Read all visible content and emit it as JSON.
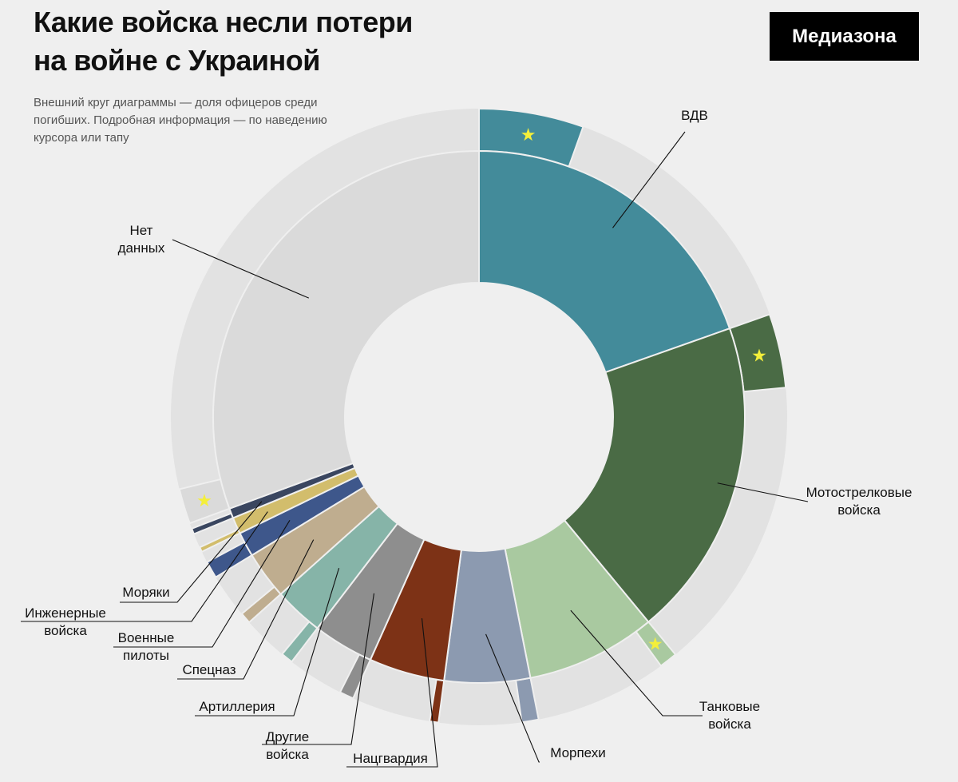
{
  "header": {
    "title_lines": [
      "Какие войска несли потери",
      "на войне с Украиной"
    ],
    "subtitle": "Внешний круг диаграммы — доля офицеров среди погибших. Подробная информация — по наведению курсора или тапу",
    "logo": "Медиазона"
  },
  "chart_data": {
    "type": "pie",
    "variant": "nested-donut",
    "inner_ring": "доля погибших по родам войск (%)",
    "outer_ring": "доля офицеров среди погибших (%)",
    "segments": [
      {
        "label": "ВДВ",
        "value": 19.6,
        "officer_share": 28,
        "color": "#438b9a",
        "star": true
      },
      {
        "label": "Мотострелковые войска",
        "value": 19.4,
        "officer_share": 20,
        "color": "#4a6b45",
        "star": true
      },
      {
        "label": "Танковые войска",
        "value": 7.9,
        "officer_share": 12,
        "color": "#a9c9a0",
        "star": true
      },
      {
        "label": "Морпехи",
        "value": 5.2,
        "officer_share": 17,
        "color": "#8c9ab0",
        "star": false
      },
      {
        "label": "Нацгвардия",
        "value": 4.6,
        "officer_share": 10,
        "color": "#7d3216",
        "star": false
      },
      {
        "label": "Другие войска",
        "value": 3.7,
        "officer_share": 20,
        "color": "#8e8e8e",
        "star": false
      },
      {
        "label": "Артиллерия",
        "value": 3.0,
        "officer_share": 21,
        "color": "#86b4a8",
        "star": false
      },
      {
        "label": "Спецназ",
        "value": 2.9,
        "officer_share": 20,
        "color": "#bfad8f",
        "star": false
      },
      {
        "label": "Военные пилоты",
        "value": 1.5,
        "officer_share": 60,
        "color": "#3e578b",
        "star": false
      },
      {
        "label": "Инженерные войска",
        "value": 1.0,
        "officer_share": 25,
        "color": "#d2bd6c",
        "star": false
      },
      {
        "label": "Моряки",
        "value": 0.6,
        "officer_share": 50,
        "color": "#3a4660",
        "star": false
      },
      {
        "label": "Нет данных",
        "value": 30.6,
        "officer_share": 6,
        "color": "#dadada",
        "star": true
      }
    ]
  }
}
